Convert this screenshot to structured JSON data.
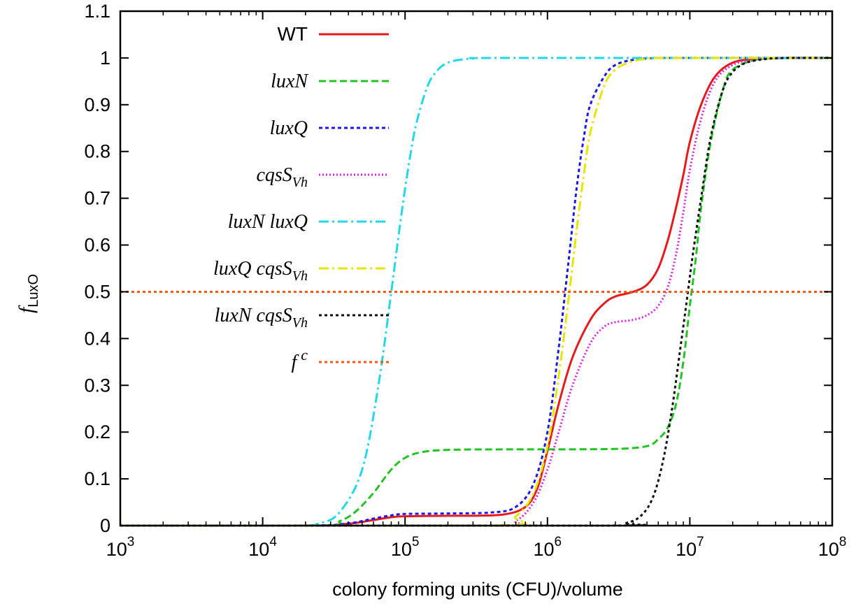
{
  "chart_data": {
    "type": "line",
    "title": "",
    "xlabel": "colony forming units (CFU)/volume",
    "ylabel": {
      "main": "f",
      "sub": "LuxO"
    },
    "xscale": "log",
    "xlim": [
      1000,
      100000000
    ],
    "ylim": [
      0,
      1.1
    ],
    "grid": false,
    "legend_position": "top-left inside",
    "x_ticks": [
      {
        "base": "10",
        "exp": "3"
      },
      {
        "base": "10",
        "exp": "4"
      },
      {
        "base": "10",
        "exp": "5"
      },
      {
        "base": "10",
        "exp": "6"
      },
      {
        "base": "10",
        "exp": "7"
      },
      {
        "base": "10",
        "exp": "8"
      }
    ],
    "y_ticks": [
      "0",
      "0.1",
      "0.2",
      "0.3",
      "0.4",
      "0.5",
      "0.6",
      "0.7",
      "0.8",
      "0.9",
      "1",
      "1.1"
    ],
    "series": [
      {
        "name": "WT",
        "label_main": "WT",
        "label_sub": "",
        "label_italic": false,
        "color": "#e41a1c",
        "dash": "solid",
        "x": [
          1000,
          20000,
          40000,
          60000,
          80000,
          100000,
          200000,
          300000,
          500000,
          700000,
          850000,
          1000000,
          1200000,
          1500000,
          2000000,
          2500000,
          3000000,
          4000000,
          5000000,
          6000000,
          7000000,
          8000000,
          9000000,
          10000000,
          12000000,
          15000000,
          20000000,
          30000000,
          50000000,
          100000000
        ],
        "y": [
          0,
          0,
          0.004,
          0.012,
          0.018,
          0.02,
          0.021,
          0.021,
          0.024,
          0.04,
          0.08,
          0.16,
          0.26,
          0.36,
          0.44,
          0.475,
          0.49,
          0.5,
          0.515,
          0.55,
          0.61,
          0.68,
          0.75,
          0.82,
          0.9,
          0.96,
          0.99,
          0.998,
          1,
          1
        ]
      },
      {
        "name": "luxN",
        "label_main": "luxN",
        "label_sub": "",
        "label_italic": true,
        "color": "#22c322",
        "dash": "10,5",
        "x": [
          1000,
          25000,
          35000,
          45000,
          60000,
          80000,
          100000,
          130000,
          200000,
          500000,
          1000000,
          3000000,
          5000000,
          6000000,
          7000000,
          8000000,
          9000000,
          10000000,
          11000000,
          12000000,
          14000000,
          17000000,
          20000000,
          30000000,
          50000000,
          100000000
        ],
        "y": [
          0,
          0,
          0.01,
          0.03,
          0.07,
          0.12,
          0.145,
          0.157,
          0.162,
          0.163,
          0.163,
          0.164,
          0.17,
          0.185,
          0.21,
          0.26,
          0.35,
          0.47,
          0.57,
          0.68,
          0.82,
          0.93,
          0.975,
          0.997,
          1,
          1
        ]
      },
      {
        "name": "luxQ",
        "label_main": "luxQ",
        "label_sub": "",
        "label_italic": true,
        "color": "#1a1ae6",
        "dash": "5,4",
        "x": [
          1000,
          20000,
          40000,
          60000,
          80000,
          100000,
          200000,
          400000,
          600000,
          800000,
          1000000,
          1200000,
          1400000,
          1600000,
          1800000,
          2000000,
          2500000,
          3000000,
          4000000,
          6000000,
          10000000,
          100000000
        ],
        "y": [
          0,
          0,
          0.005,
          0.015,
          0.022,
          0.025,
          0.026,
          0.028,
          0.04,
          0.09,
          0.2,
          0.38,
          0.56,
          0.72,
          0.83,
          0.9,
          0.96,
          0.985,
          0.996,
          1,
          1,
          1
        ]
      },
      {
        "name": "cqsS_Vh",
        "label_main": "cqsS",
        "label_sub": "Vh",
        "label_italic": true,
        "color": "#e020e0",
        "dash": "2,3",
        "x": [
          1000,
          400000,
          600000,
          800000,
          1000000,
          1200000,
          1500000,
          2000000,
          2500000,
          3000000,
          4000000,
          5000000,
          6000000,
          7000000,
          8000000,
          9000000,
          10000000,
          12000000,
          15000000,
          20000000,
          30000000,
          50000000,
          100000000
        ],
        "y": [
          0,
          0,
          0.01,
          0.05,
          0.12,
          0.2,
          0.3,
          0.39,
          0.425,
          0.435,
          0.44,
          0.45,
          0.47,
          0.51,
          0.58,
          0.67,
          0.76,
          0.87,
          0.95,
          0.985,
          0.998,
          1,
          1
        ]
      },
      {
        "name": "luxN luxQ",
        "label_main": "luxN luxQ",
        "label_sub": "",
        "label_italic": true,
        "color": "#22d8e8",
        "dash": "14,5,3,5",
        "x": [
          1000,
          15000,
          25000,
          35000,
          50000,
          65000,
          80000,
          90000,
          100000,
          110000,
          120000,
          140000,
          160000,
          200000,
          300000,
          500000,
          100000000
        ],
        "y": [
          0,
          0,
          0.005,
          0.03,
          0.12,
          0.3,
          0.5,
          0.62,
          0.72,
          0.8,
          0.86,
          0.93,
          0.965,
          0.99,
          0.999,
          1,
          1
        ]
      },
      {
        "name": "luxQ cqsS_Vh",
        "label_main": "luxQ cqsS",
        "label_sub": "Vh",
        "label_italic": true,
        "color": "#e6e600",
        "dash": "14,5,3,5",
        "x": [
          1000,
          400000,
          600000,
          800000,
          1000000,
          1200000,
          1400000,
          1600000,
          1800000,
          2000000,
          2500000,
          3000000,
          4000000,
          6000000,
          10000000,
          100000000
        ],
        "y": [
          0,
          0,
          0.02,
          0.07,
          0.17,
          0.32,
          0.48,
          0.63,
          0.75,
          0.84,
          0.94,
          0.975,
          0.993,
          1,
          1,
          1
        ]
      },
      {
        "name": "luxN cqsS_Vh",
        "label_main": "luxN cqsS",
        "label_sub": "Vh",
        "label_italic": true,
        "color": "#111111",
        "dash": "4,4",
        "x": [
          1000,
          2500000,
          3500000,
          4500000,
          5500000,
          6500000,
          7500000,
          8500000,
          9500000,
          10500000,
          12000000,
          14000000,
          17000000,
          20000000,
          25000000,
          35000000,
          50000000,
          100000000
        ],
        "y": [
          0,
          0,
          0.005,
          0.02,
          0.06,
          0.14,
          0.25,
          0.37,
          0.48,
          0.58,
          0.7,
          0.83,
          0.93,
          0.97,
          0.99,
          0.998,
          1,
          1
        ]
      },
      {
        "name": "f^c",
        "label_main": "f",
        "label_sup": "c",
        "label_sub": "",
        "label_italic": true,
        "color": "#f05a14",
        "dash": "4,4",
        "x": [
          1000,
          100000000
        ],
        "y": [
          0.5,
          0.5
        ]
      }
    ]
  }
}
